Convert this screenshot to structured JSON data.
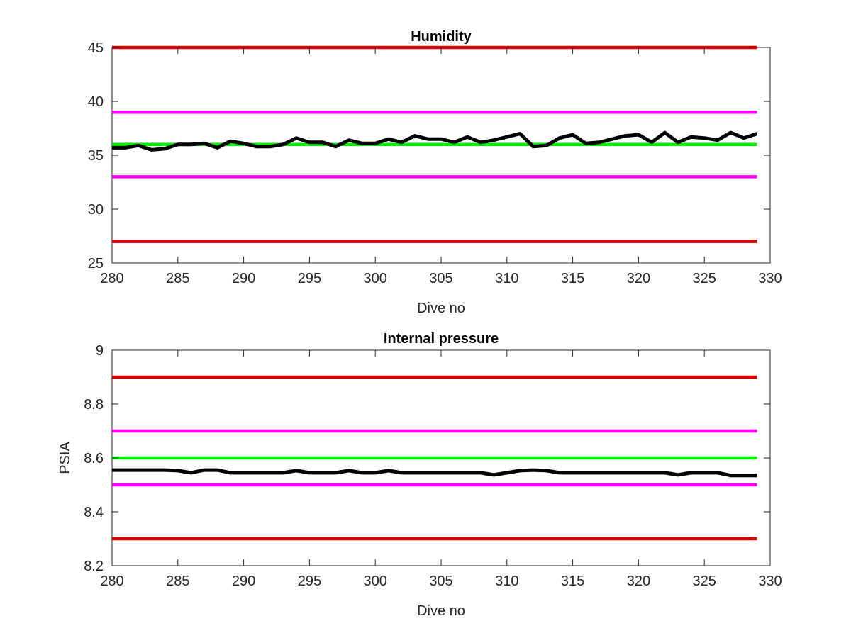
{
  "chart_data": [
    {
      "type": "line",
      "title": "Humidity",
      "xlabel": "Dive no",
      "ylabel": "",
      "xlim": [
        280,
        330
      ],
      "ylim": [
        25,
        45
      ],
      "xticks": [
        280,
        285,
        290,
        295,
        300,
        305,
        310,
        315,
        320,
        325,
        330
      ],
      "yticks": [
        25,
        30,
        35,
        40,
        45
      ],
      "grid": false,
      "series": [
        {
          "role": "limit",
          "color": "#d40000",
          "x": [
            280,
            329
          ],
          "y": [
            45,
            45
          ]
        },
        {
          "role": "limit",
          "color": "#d40000",
          "x": [
            280,
            329
          ],
          "y": [
            27,
            27
          ]
        },
        {
          "role": "limit",
          "color": "#ff00ff",
          "x": [
            280,
            329
          ],
          "y": [
            39,
            39
          ]
        },
        {
          "role": "limit",
          "color": "#ff00ff",
          "x": [
            280,
            329
          ],
          "y": [
            33,
            33
          ]
        },
        {
          "role": "limit",
          "color": "#00ee00",
          "x": [
            280,
            329
          ],
          "y": [
            36,
            36
          ]
        },
        {
          "role": "data",
          "color": "#000000",
          "x": [
            280,
            281,
            282,
            283,
            284,
            285,
            286,
            287,
            288,
            289,
            290,
            291,
            292,
            293,
            294,
            295,
            296,
            297,
            298,
            299,
            300,
            301,
            302,
            303,
            304,
            305,
            306,
            307,
            308,
            309,
            310,
            311,
            312,
            313,
            314,
            315,
            316,
            317,
            318,
            319,
            320,
            321,
            322,
            323,
            324,
            325,
            326,
            327,
            328,
            329
          ],
          "y": [
            35.7,
            35.7,
            35.9,
            35.5,
            35.6,
            36.0,
            36.0,
            36.1,
            35.7,
            36.3,
            36.1,
            35.8,
            35.8,
            36.0,
            36.6,
            36.2,
            36.2,
            35.8,
            36.4,
            36.1,
            36.1,
            36.5,
            36.2,
            36.8,
            36.5,
            36.5,
            36.2,
            36.7,
            36.2,
            36.4,
            36.7,
            37.0,
            35.8,
            35.9,
            36.6,
            36.9,
            36.1,
            36.2,
            36.5,
            36.8,
            36.9,
            36.2,
            37.1,
            36.2,
            36.7,
            36.6,
            36.4,
            37.1,
            36.6,
            37.0
          ]
        }
      ]
    },
    {
      "type": "line",
      "title": "Internal pressure",
      "xlabel": "Dive no",
      "ylabel": "PSIA",
      "xlim": [
        280,
        330
      ],
      "ylim": [
        8.2,
        9
      ],
      "xticks": [
        280,
        285,
        290,
        295,
        300,
        305,
        310,
        315,
        320,
        325,
        330
      ],
      "yticks": [
        8.2,
        8.4,
        8.6,
        8.8,
        9
      ],
      "grid": false,
      "series": [
        {
          "role": "limit",
          "color": "#d40000",
          "x": [
            280,
            329
          ],
          "y": [
            8.9,
            8.9
          ]
        },
        {
          "role": "limit",
          "color": "#d40000",
          "x": [
            280,
            329
          ],
          "y": [
            8.3,
            8.3
          ]
        },
        {
          "role": "limit",
          "color": "#ff00ff",
          "x": [
            280,
            329
          ],
          "y": [
            8.7,
            8.7
          ]
        },
        {
          "role": "limit",
          "color": "#ff00ff",
          "x": [
            280,
            329
          ],
          "y": [
            8.5,
            8.5
          ]
        },
        {
          "role": "limit",
          "color": "#00ee00",
          "x": [
            280,
            329
          ],
          "y": [
            8.6,
            8.6
          ]
        },
        {
          "role": "data",
          "color": "#000000",
          "x": [
            280,
            281,
            282,
            283,
            284,
            285,
            286,
            287,
            288,
            289,
            290,
            291,
            292,
            293,
            294,
            295,
            296,
            297,
            298,
            299,
            300,
            301,
            302,
            303,
            304,
            305,
            306,
            307,
            308,
            309,
            310,
            311,
            312,
            313,
            314,
            315,
            316,
            317,
            318,
            319,
            320,
            321,
            322,
            323,
            324,
            325,
            326,
            327,
            328,
            329
          ],
          "y": [
            8.555,
            8.555,
            8.555,
            8.555,
            8.555,
            8.553,
            8.545,
            8.555,
            8.555,
            8.545,
            8.545,
            8.545,
            8.545,
            8.545,
            8.553,
            8.545,
            8.545,
            8.545,
            8.553,
            8.545,
            8.545,
            8.553,
            8.545,
            8.545,
            8.545,
            8.545,
            8.545,
            8.545,
            8.545,
            8.537,
            8.545,
            8.553,
            8.555,
            8.553,
            8.545,
            8.545,
            8.545,
            8.545,
            8.545,
            8.545,
            8.545,
            8.545,
            8.545,
            8.537,
            8.545,
            8.545,
            8.545,
            8.535,
            8.535,
            8.535
          ]
        }
      ]
    }
  ]
}
